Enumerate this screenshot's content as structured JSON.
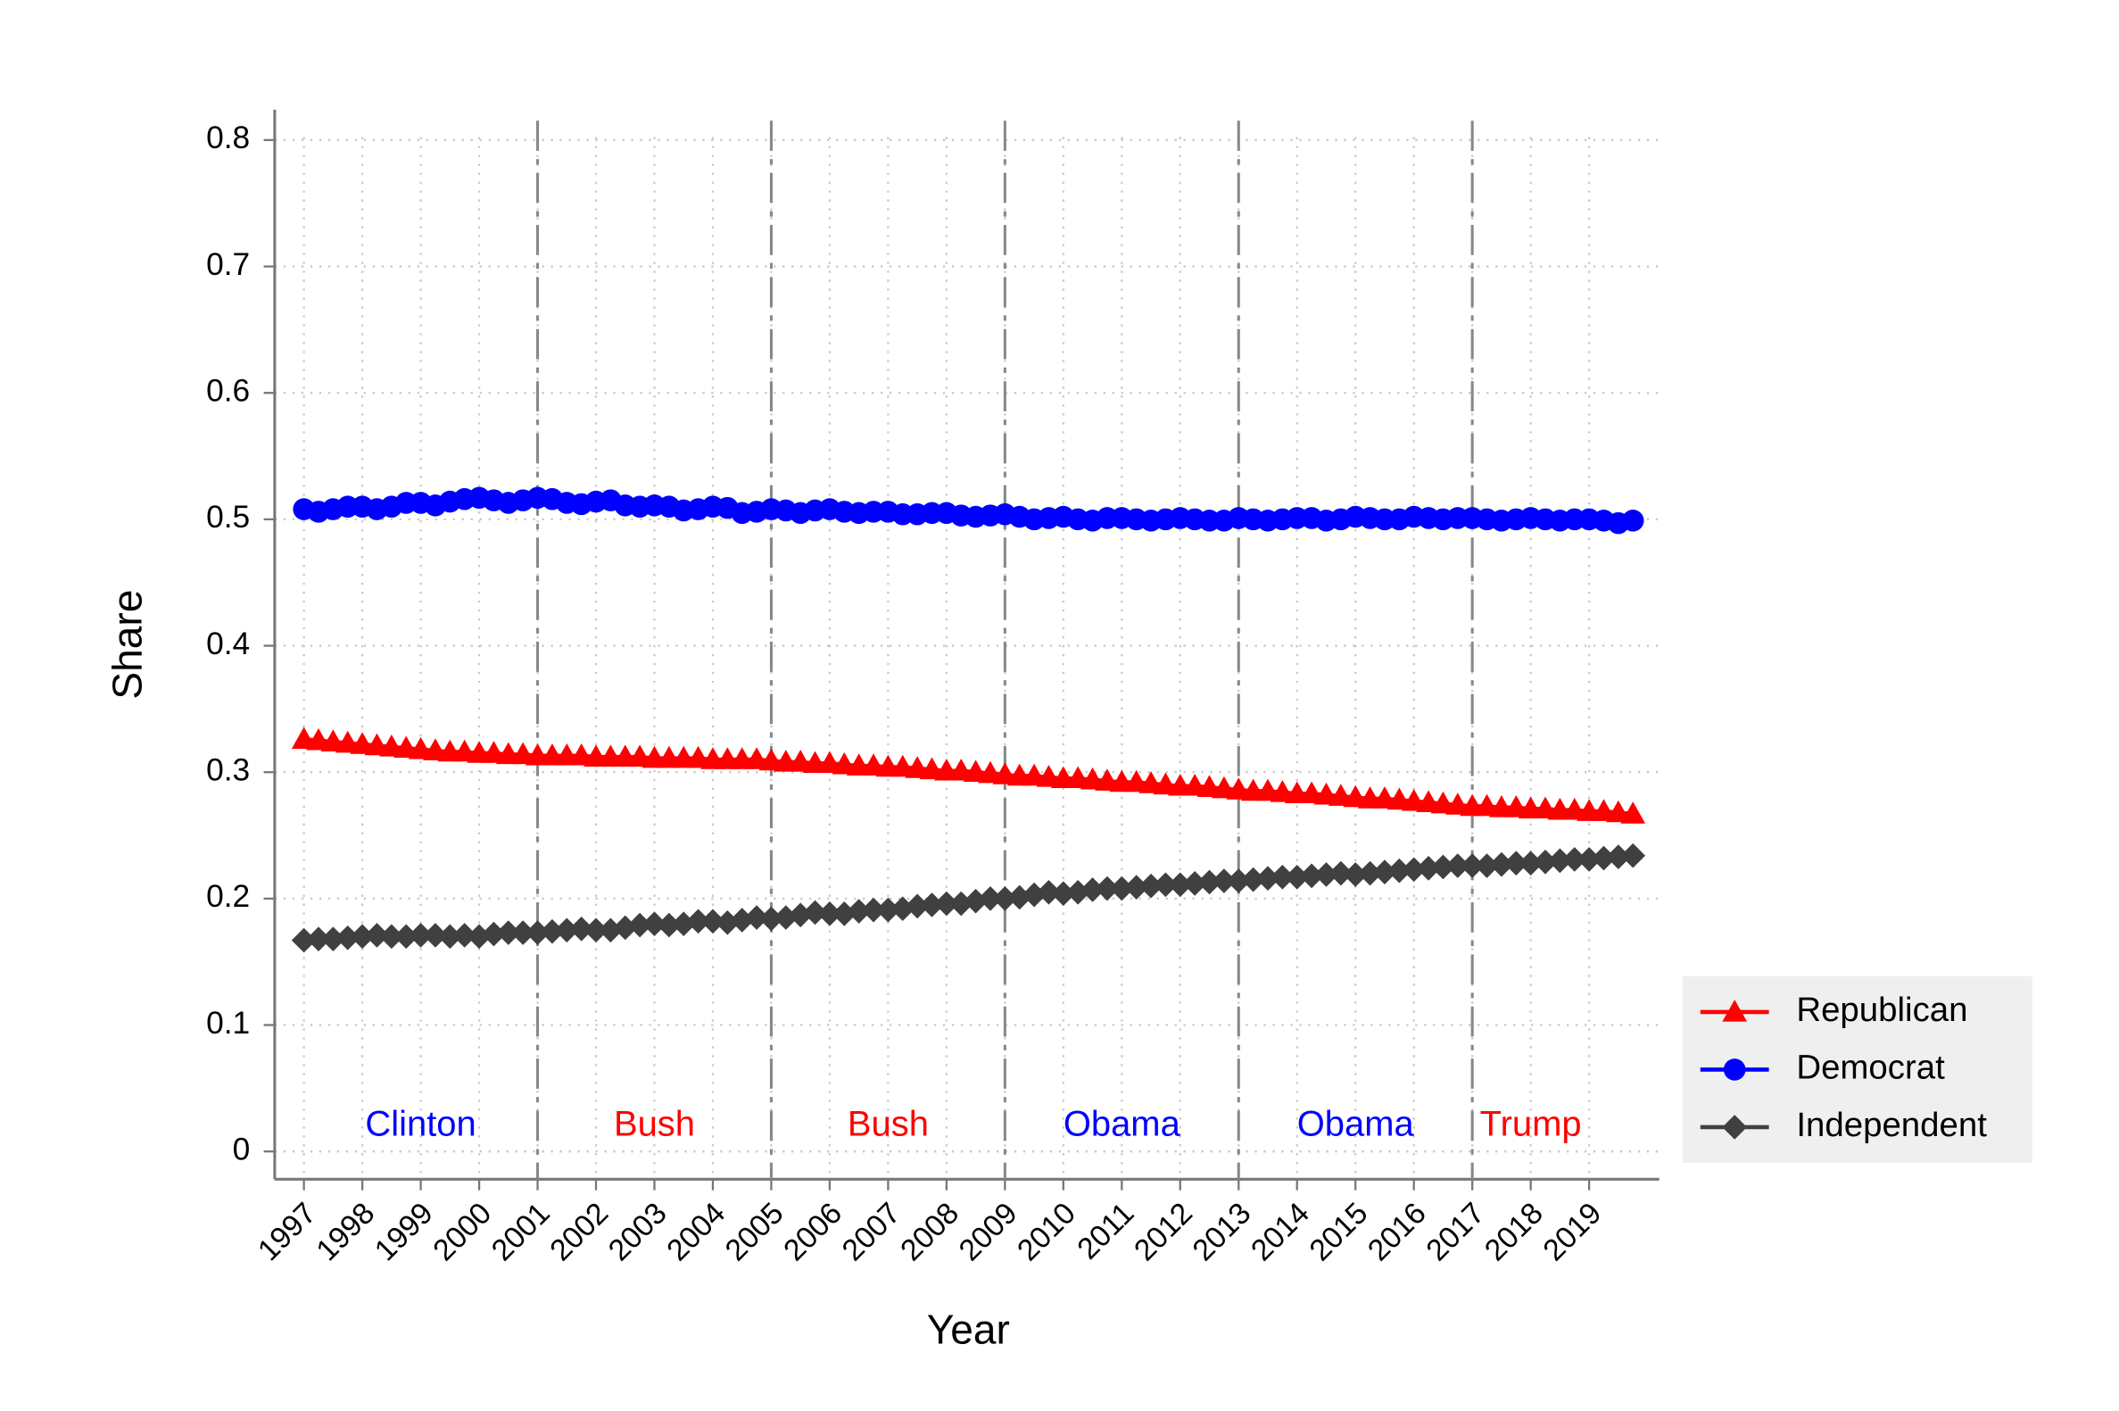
{
  "chart_data": {
    "type": "line",
    "x_label": "Year",
    "y_label": "Share",
    "x": [
      1997,
      1997.25,
      1997.5,
      1997.75,
      1998,
      1998.25,
      1998.5,
      1998.75,
      1999,
      1999.25,
      1999.5,
      1999.75,
      2000,
      2000.25,
      2000.5,
      2000.75,
      2001,
      2001.25,
      2001.5,
      2001.75,
      2002,
      2002.25,
      2002.5,
      2002.75,
      2003,
      2003.25,
      2003.5,
      2003.75,
      2004,
      2004.25,
      2004.5,
      2004.75,
      2005,
      2005.25,
      2005.5,
      2005.75,
      2006,
      2006.25,
      2006.5,
      2006.75,
      2007,
      2007.25,
      2007.5,
      2007.75,
      2008,
      2008.25,
      2008.5,
      2008.75,
      2009,
      2009.25,
      2009.5,
      2009.75,
      2010,
      2010.25,
      2010.5,
      2010.75,
      2011,
      2011.25,
      2011.5,
      2011.75,
      2012,
      2012.25,
      2012.5,
      2012.75,
      2013,
      2013.25,
      2013.5,
      2013.75,
      2014,
      2014.25,
      2014.5,
      2014.75,
      2015,
      2015.25,
      2015.5,
      2015.75,
      2016,
      2016.25,
      2016.5,
      2016.75,
      2017,
      2017.25,
      2017.5,
      2017.75,
      2018,
      2018.25,
      2018.5,
      2018.75,
      2019,
      2019.25,
      2019.5,
      2019.75
    ],
    "series": [
      {
        "name": "Republican",
        "color": "#ff0000",
        "marker": "triangle",
        "values": [
          0.326,
          0.325,
          0.324,
          0.323,
          0.322,
          0.321,
          0.32,
          0.319,
          0.318,
          0.317,
          0.316,
          0.316,
          0.315,
          0.315,
          0.314,
          0.314,
          0.313,
          0.313,
          0.313,
          0.313,
          0.312,
          0.312,
          0.312,
          0.312,
          0.311,
          0.311,
          0.311,
          0.311,
          0.31,
          0.31,
          0.31,
          0.31,
          0.309,
          0.308,
          0.308,
          0.307,
          0.307,
          0.306,
          0.305,
          0.305,
          0.304,
          0.304,
          0.303,
          0.302,
          0.301,
          0.301,
          0.3,
          0.299,
          0.298,
          0.297,
          0.297,
          0.296,
          0.295,
          0.295,
          0.294,
          0.293,
          0.292,
          0.292,
          0.291,
          0.29,
          0.289,
          0.289,
          0.288,
          0.287,
          0.286,
          0.285,
          0.285,
          0.284,
          0.283,
          0.283,
          0.282,
          0.281,
          0.28,
          0.279,
          0.279,
          0.278,
          0.277,
          0.276,
          0.275,
          0.274,
          0.273,
          0.273,
          0.272,
          0.272,
          0.271,
          0.271,
          0.27,
          0.27,
          0.269,
          0.269,
          0.268,
          0.267
        ]
      },
      {
        "name": "Democrat",
        "color": "#0000ff",
        "marker": "circle",
        "values": [
          0.508,
          0.506,
          0.508,
          0.51,
          0.51,
          0.508,
          0.51,
          0.513,
          0.513,
          0.511,
          0.514,
          0.516,
          0.517,
          0.515,
          0.513,
          0.515,
          0.517,
          0.516,
          0.513,
          0.512,
          0.514,
          0.515,
          0.511,
          0.51,
          0.511,
          0.51,
          0.507,
          0.508,
          0.51,
          0.509,
          0.505,
          0.506,
          0.508,
          0.507,
          0.505,
          0.507,
          0.508,
          0.506,
          0.505,
          0.506,
          0.506,
          0.504,
          0.504,
          0.505,
          0.505,
          0.503,
          0.502,
          0.503,
          0.504,
          0.502,
          0.5,
          0.501,
          0.502,
          0.5,
          0.499,
          0.501,
          0.501,
          0.5,
          0.499,
          0.5,
          0.501,
          0.5,
          0.499,
          0.499,
          0.501,
          0.5,
          0.499,
          0.5,
          0.501,
          0.501,
          0.499,
          0.5,
          0.502,
          0.501,
          0.5,
          0.5,
          0.502,
          0.501,
          0.5,
          0.501,
          0.501,
          0.5,
          0.499,
          0.5,
          0.501,
          0.5,
          0.499,
          0.5,
          0.5,
          0.499,
          0.497,
          0.499
        ]
      },
      {
        "name": "Independent",
        "color": "#404040",
        "marker": "diamond",
        "values": [
          0.167,
          0.168,
          0.168,
          0.169,
          0.17,
          0.171,
          0.17,
          0.17,
          0.171,
          0.171,
          0.17,
          0.171,
          0.17,
          0.172,
          0.173,
          0.173,
          0.173,
          0.174,
          0.175,
          0.176,
          0.175,
          0.175,
          0.177,
          0.179,
          0.18,
          0.179,
          0.18,
          0.182,
          0.182,
          0.181,
          0.183,
          0.185,
          0.184,
          0.185,
          0.187,
          0.189,
          0.188,
          0.188,
          0.19,
          0.191,
          0.191,
          0.192,
          0.194,
          0.195,
          0.196,
          0.196,
          0.198,
          0.2,
          0.2,
          0.201,
          0.203,
          0.205,
          0.204,
          0.205,
          0.207,
          0.208,
          0.208,
          0.209,
          0.21,
          0.211,
          0.211,
          0.212,
          0.213,
          0.214,
          0.214,
          0.215,
          0.216,
          0.217,
          0.217,
          0.218,
          0.219,
          0.22,
          0.219,
          0.22,
          0.221,
          0.222,
          0.223,
          0.224,
          0.225,
          0.226,
          0.226,
          0.226,
          0.227,
          0.228,
          0.228,
          0.229,
          0.23,
          0.231,
          0.231,
          0.232,
          0.233,
          0.234
        ]
      }
    ],
    "xlim": [
      1996.5,
      2020.2
    ],
    "ylim": [
      -0.022,
      0.824
    ],
    "xticks": [
      1997,
      1998,
      1999,
      2000,
      2001,
      2002,
      2003,
      2004,
      2005,
      2006,
      2007,
      2008,
      2009,
      2010,
      2011,
      2012,
      2013,
      2014,
      2015,
      2016,
      2017,
      2018,
      2019
    ],
    "yticks": [
      0,
      0.1,
      0.2,
      0.3,
      0.4,
      0.5,
      0.6,
      0.7,
      0.8
    ],
    "grid": true,
    "legend": "lower right outside",
    "vlines": [
      2001,
      2005,
      2009,
      2013,
      2017
    ],
    "annotations": [
      {
        "text": "Clinton",
        "x": 1999,
        "y": 0.02,
        "color": "#0000ff"
      },
      {
        "text": "Bush",
        "x": 2003,
        "y": 0.02,
        "color": "#ff0000"
      },
      {
        "text": "Bush",
        "x": 2007,
        "y": 0.02,
        "color": "#ff0000"
      },
      {
        "text": "Obama",
        "x": 2011,
        "y": 0.02,
        "color": "#0000ff"
      },
      {
        "text": "Obama",
        "x": 2015,
        "y": 0.02,
        "color": "#0000ff"
      },
      {
        "text": "Trump",
        "x": 2018,
        "y": 0.02,
        "color": "#ff0000"
      }
    ]
  }
}
